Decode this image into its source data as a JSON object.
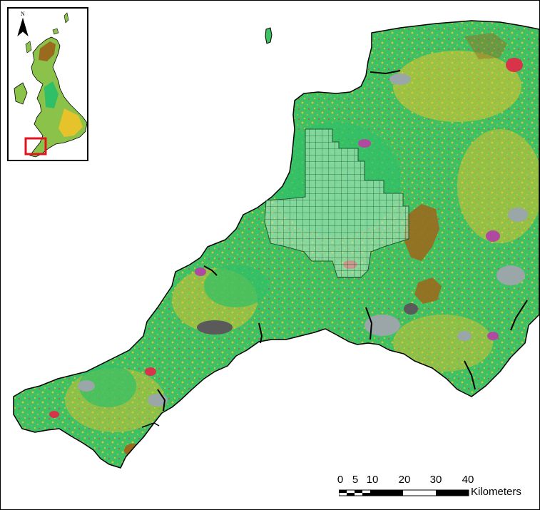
{
  "map": {
    "colors": {
      "land_base": "#56c15b",
      "grassland": "#2fbf67",
      "arable": "#8bc34a",
      "yellow_fields": "#e6c22b",
      "urban": "#9aa6a8",
      "heath": "#9a6a1e",
      "woodland_red": "#d9334a",
      "moor_magenta": "#b04aa0",
      "dark_grey": "#5a5a5a",
      "grid_stroke": "#1c5b33",
      "inset_highlight": "#e0141e",
      "coast": "#000000"
    }
  },
  "inset": {
    "north_label": "N",
    "icons": [
      "north-arrow-icon"
    ]
  },
  "scalebar": {
    "labels": [
      "0",
      "5",
      "10",
      "20",
      "30",
      "40"
    ],
    "units": "Kilometers"
  }
}
